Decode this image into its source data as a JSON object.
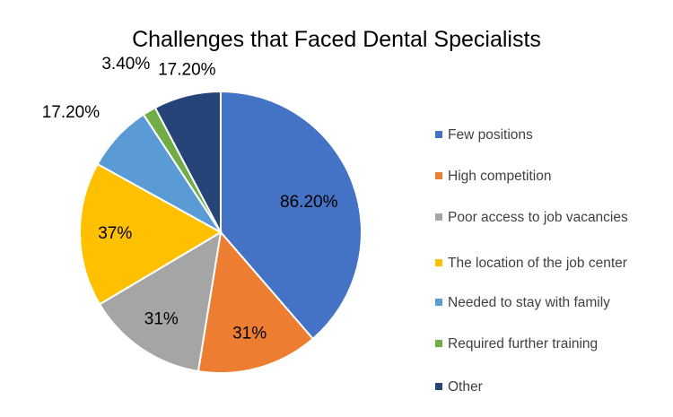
{
  "chart_data": {
    "type": "pie",
    "title": "Challenges that Faced Dental Specialists",
    "categories": [
      "Few positions",
      "High competition",
      "Poor access to job vacancies",
      "The location of the job center",
      "Needed to stay with family",
      "Required further training",
      "Other"
    ],
    "values": [
      86.2,
      31,
      31,
      37,
      17.2,
      3.4,
      17.2
    ],
    "data_labels": [
      "86.20%",
      "31%",
      "31%",
      "37%",
      "17.20%",
      "3.40%",
      "17.20%"
    ],
    "colors": [
      "#4472C4",
      "#ED7D31",
      "#A5A5A5",
      "#FFC000",
      "#5B9BD5",
      "#70AD47",
      "#264478"
    ],
    "legend_position": "right",
    "start": "top, clockwise"
  }
}
